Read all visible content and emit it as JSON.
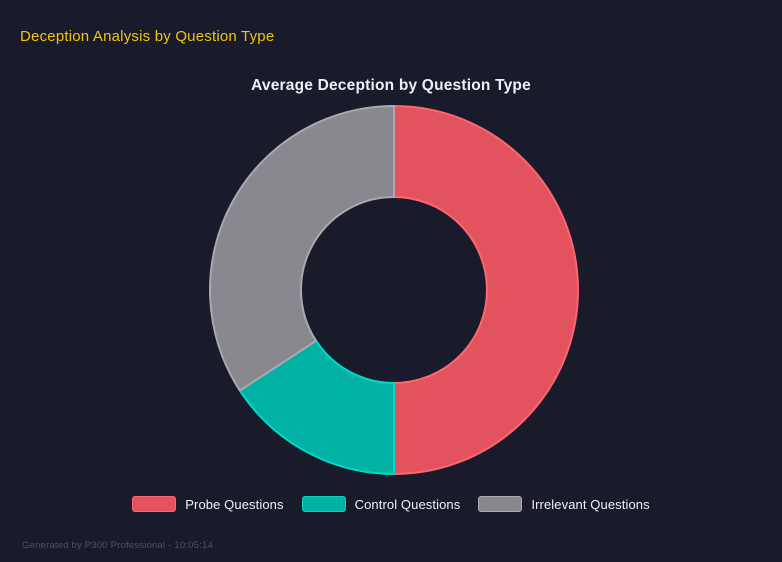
{
  "page": {
    "title": "Deception Analysis by Question Type",
    "footer": "Generated by P300 Professional - 10:05:14"
  },
  "colors": {
    "background": "#191b2a",
    "page_title": "#f1c40f",
    "chart_title": "#eef0f4",
    "legend_text": "#f1f1f4",
    "footer_text": "#4c5166"
  },
  "chart_data": {
    "type": "doughnut",
    "title": "Average Deception by Question Type",
    "labels": [
      "Probe Questions",
      "Control Questions",
      "Irrelevant Questions"
    ],
    "values_percent": [
      50,
      15.8,
      34.2
    ],
    "colors": [
      "#e2535e",
      "#00b1a4",
      "#88888e"
    ],
    "border_colors": [
      "#fb6672",
      "#00d9c6",
      "#a9a9af"
    ],
    "cutout_percent": 50,
    "start_angle_deg": 0,
    "direction": "clockwise",
    "legend_position": "bottom",
    "grid": false
  }
}
